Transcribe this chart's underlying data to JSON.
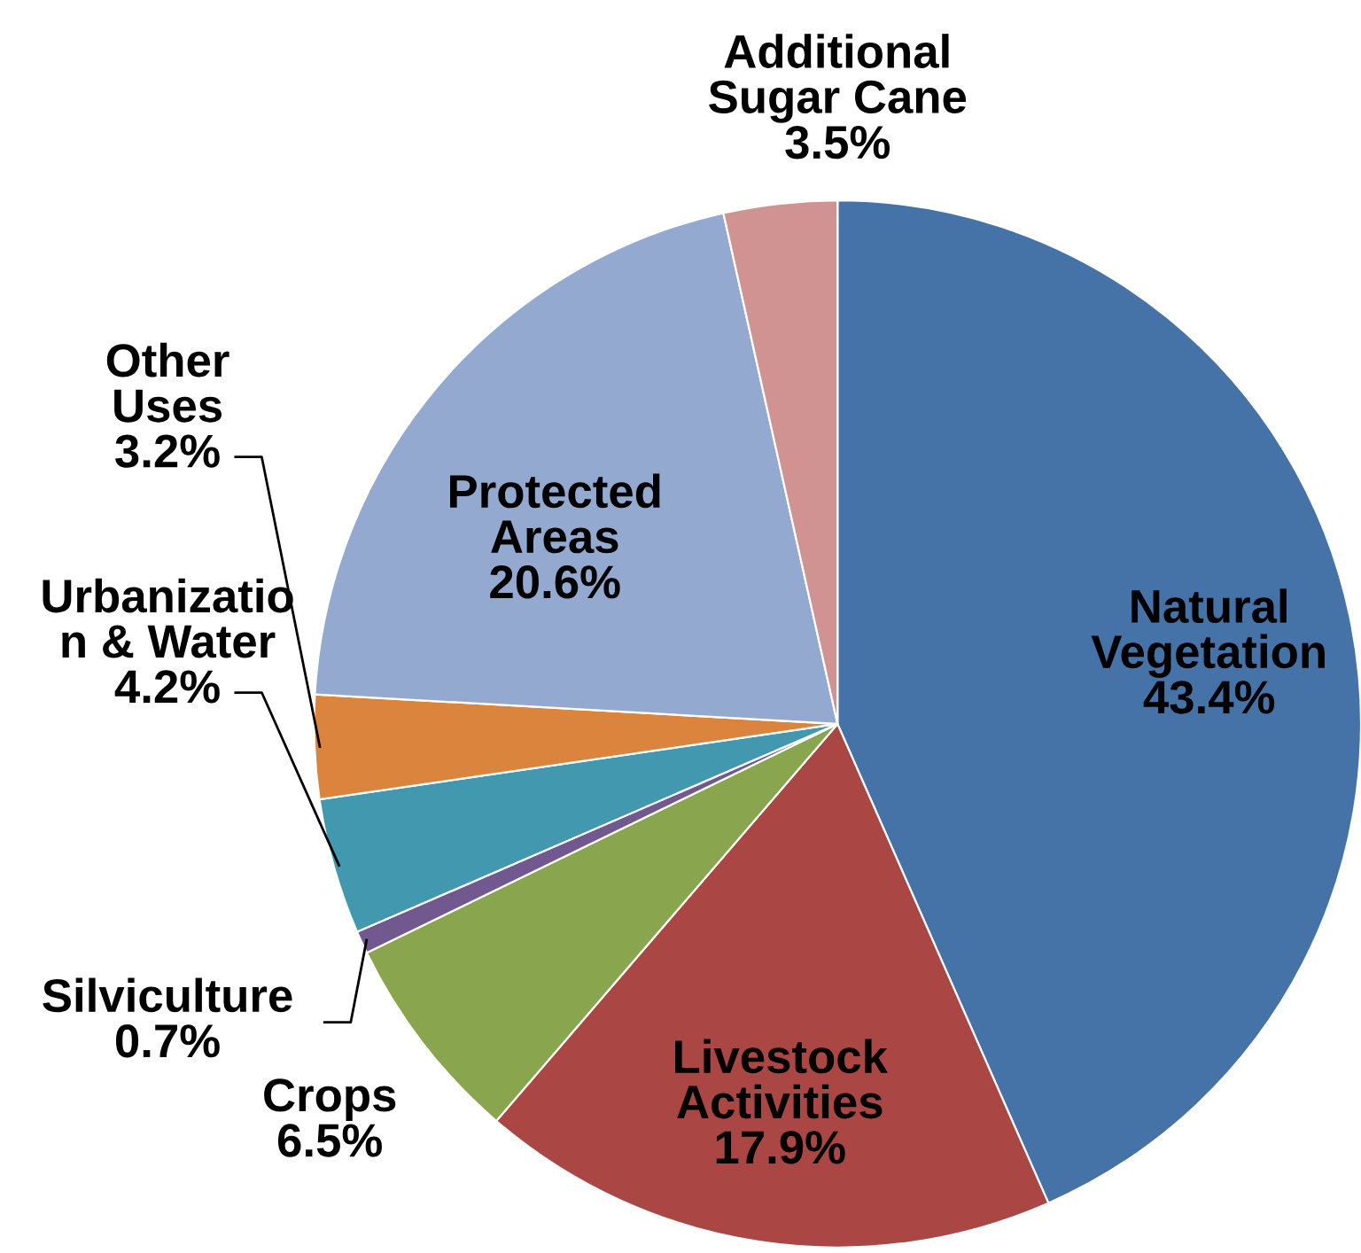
{
  "chart_data": {
    "type": "pie",
    "categories": [
      "Natural\nVegetation",
      "Livestock\nActivities",
      "Crops",
      "Silviculture",
      "Urbanizatio\nn & Water",
      "Other\nUses",
      "Protected\nAreas",
      "Additional\nSugar Cane"
    ],
    "values": [
      43.4,
      17.9,
      6.5,
      0.7,
      4.2,
      3.2,
      20.6,
      3.5
    ],
    "value_labels": [
      "43.4%",
      "17.9%",
      "6.5%",
      "0.7%",
      "4.2%",
      "3.2%",
      "20.6%",
      "3.5%"
    ],
    "colors": [
      "#4572a7",
      "#aa4643",
      "#89a54e",
      "#71588f",
      "#4198af",
      "#db843d",
      "#93a9cf",
      "#d19392"
    ],
    "legend": false
  }
}
